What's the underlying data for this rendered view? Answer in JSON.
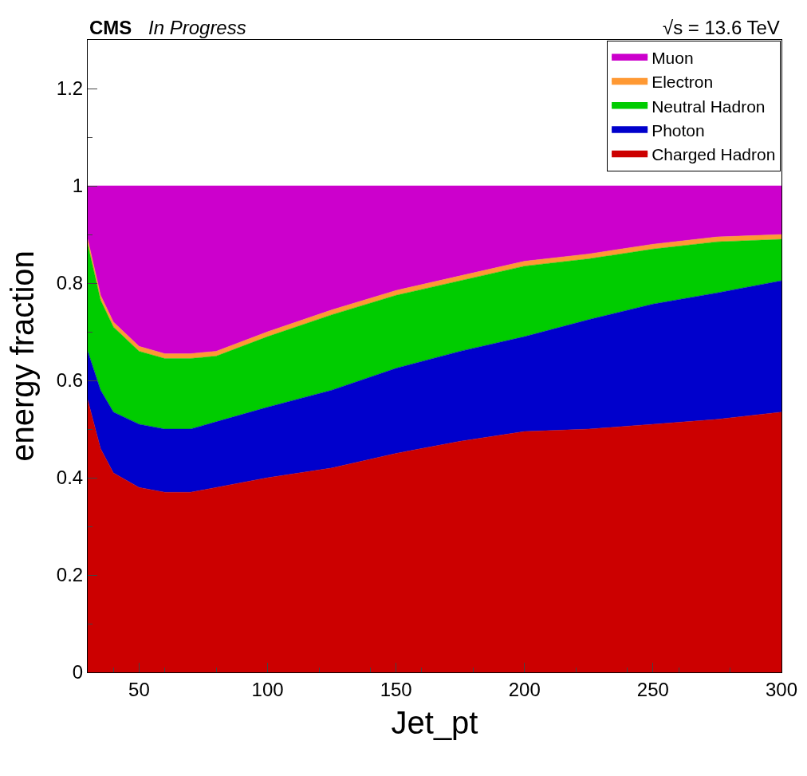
{
  "chart_data": {
    "type": "area",
    "stacked": true,
    "xlabel": "Jet_pt",
    "ylabel": "energy fraction",
    "annotations": [
      "CMS",
      "In Progress",
      "√s = 13.6 TeV"
    ],
    "x": [
      30,
      35,
      40,
      50,
      60,
      70,
      80,
      100,
      125,
      150,
      175,
      200,
      225,
      250,
      275,
      300
    ],
    "series": [
      {
        "name": "Charged Hadron",
        "color": "#cc0000",
        "values": [
          0.56,
          0.46,
          0.41,
          0.38,
          0.37,
          0.37,
          0.38,
          0.4,
          0.42,
          0.45,
          0.475,
          0.495,
          0.5,
          0.51,
          0.52,
          0.535
        ]
      },
      {
        "name": "Photon",
        "color": "#0000cc",
        "values": [
          0.1,
          0.12,
          0.125,
          0.13,
          0.13,
          0.13,
          0.135,
          0.145,
          0.16,
          0.175,
          0.185,
          0.195,
          0.225,
          0.247,
          0.26,
          0.27
        ]
      },
      {
        "name": "Neutral Hadron",
        "color": "#00cc00",
        "values": [
          0.22,
          0.185,
          0.175,
          0.15,
          0.145,
          0.145,
          0.135,
          0.145,
          0.155,
          0.15,
          0.145,
          0.145,
          0.125,
          0.113,
          0.105,
          0.085
        ]
      },
      {
        "name": "Electron",
        "color": "#ff9933",
        "values": [
          0.01,
          0.01,
          0.01,
          0.01,
          0.01,
          0.01,
          0.01,
          0.01,
          0.01,
          0.01,
          0.01,
          0.01,
          0.01,
          0.01,
          0.01,
          0.01
        ]
      },
      {
        "name": "Muon",
        "color": "#cc00cc",
        "values": [
          0.11,
          0.225,
          0.28,
          0.33,
          0.345,
          0.345,
          0.34,
          0.3,
          0.255,
          0.215,
          0.185,
          0.155,
          0.14,
          0.12,
          0.105,
          0.1
        ]
      }
    ],
    "xlim": [
      30,
      300
    ],
    "xticks": [
      50,
      100,
      150,
      200,
      250,
      300
    ],
    "ylim": [
      0,
      1.3
    ],
    "yticks": [
      0,
      0.2,
      0.4,
      0.6,
      0.8,
      1,
      1.2
    ],
    "legend": "top right"
  }
}
